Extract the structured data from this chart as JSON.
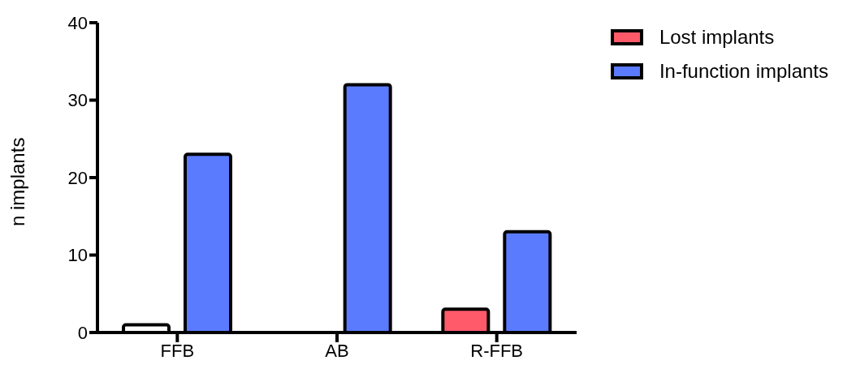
{
  "chart_data": {
    "type": "bar",
    "categories": [
      "FFB",
      "AB",
      "R-FFB"
    ],
    "ylabel": "n implants",
    "series": [
      {
        "name": "Lost implants",
        "colors": [
          "#ffffff",
          "#ffffff",
          "#ff5a6a"
        ],
        "values": [
          1,
          0,
          3
        ]
      },
      {
        "name": "In-function implants",
        "color": "#5b7bff",
        "values": [
          23,
          32,
          13
        ]
      }
    ],
    "ylim": [
      0,
      40
    ],
    "yticks": [
      0,
      10,
      20,
      30,
      40
    ],
    "grid": false,
    "legend": "top right"
  }
}
